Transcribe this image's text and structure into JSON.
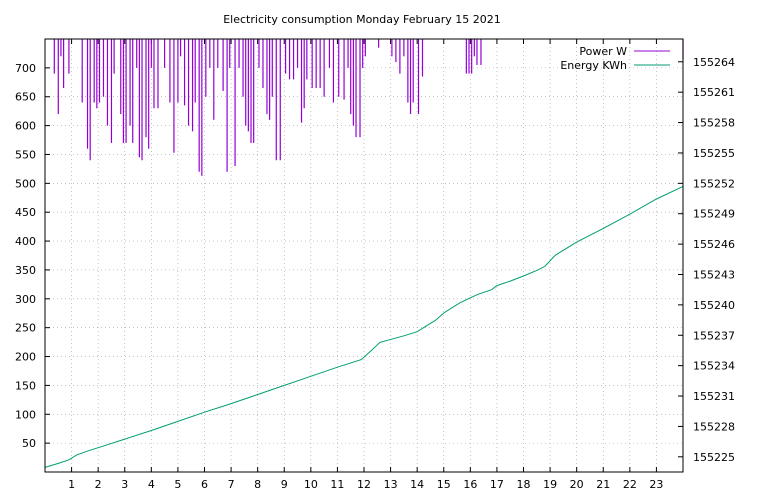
{
  "chart_data": {
    "type": "line",
    "title": "Electricity consumption Monday February 15 2021",
    "xlabel": "",
    "ylabel": "",
    "y2label": "",
    "grid": true,
    "legend_position": "top-right",
    "xlim": [
      0,
      24
    ],
    "ylim": [
      0,
      750
    ],
    "y2lim": [
      155223.5,
      155266.25
    ],
    "x_ticks": [
      1,
      2,
      3,
      4,
      5,
      6,
      7,
      8,
      9,
      10,
      11,
      12,
      13,
      14,
      15,
      16,
      17,
      18,
      19,
      20,
      21,
      22,
      23
    ],
    "y_ticks": [
      50,
      100,
      150,
      200,
      250,
      300,
      350,
      400,
      450,
      500,
      550,
      600,
      650,
      700
    ],
    "y2_ticks": [
      155225,
      155228,
      155231,
      155234,
      155237,
      155240,
      155243,
      155246,
      155249,
      155252,
      155255,
      155258,
      155261,
      155264
    ],
    "series": [
      {
        "name": "Power W",
        "axis": "left",
        "color": "#9400d3",
        "style": "impulses-from-top",
        "x": [
          0.35,
          0.5,
          0.6,
          0.7,
          0.9,
          1.4,
          1.6,
          1.7,
          1.85,
          1.95,
          2.05,
          2.2,
          2.35,
          2.5,
          2.6,
          2.85,
          2.95,
          3.05,
          3.2,
          3.3,
          3.45,
          3.55,
          3.65,
          3.8,
          3.9,
          4.0,
          4.1,
          4.25,
          4.5,
          4.7,
          4.85,
          5.0,
          5.1,
          5.25,
          5.4,
          5.55,
          5.65,
          5.8,
          5.9,
          6.05,
          6.2,
          6.35,
          6.5,
          6.7,
          6.85,
          6.95,
          7.15,
          7.3,
          7.45,
          7.55,
          7.65,
          7.75,
          7.85,
          8.05,
          8.2,
          8.35,
          8.45,
          8.55,
          8.7,
          8.85,
          9.05,
          9.2,
          9.35,
          9.5,
          9.65,
          9.75,
          9.85,
          10.05,
          10.2,
          10.35,
          10.5,
          10.7,
          10.85,
          11.05,
          11.25,
          11.4,
          11.5,
          11.6,
          11.7,
          11.85,
          11.95,
          12.05,
          12.55,
          13.05,
          13.2,
          13.35,
          13.5,
          13.65,
          13.75,
          13.85,
          14.05,
          14.2,
          15.85,
          15.95,
          16.05,
          16.15,
          16.25,
          16.4,
          24.0
        ],
        "values": [
          690,
          620,
          720,
          665,
          690,
          640,
          560,
          540,
          640,
          630,
          640,
          650,
          600,
          570,
          690,
          620,
          570,
          570,
          600,
          570,
          700,
          545,
          540,
          580,
          560,
          700,
          630,
          630,
          700,
          640,
          553,
          640,
          720,
          635,
          600,
          590,
          640,
          520,
          513,
          650,
          700,
          610,
          700,
          660,
          520,
          700,
          530,
          700,
          650,
          600,
          590,
          570,
          570,
          700,
          665,
          620,
          610,
          650,
          540,
          540,
          690,
          680,
          680,
          700,
          605,
          630,
          680,
          665,
          665,
          665,
          650,
          700,
          640,
          650,
          645,
          700,
          620,
          600,
          580,
          580,
          700,
          720,
          735,
          720,
          710,
          690,
          720,
          640,
          620,
          640,
          620,
          685,
          690,
          690,
          690,
          720,
          705,
          705,
          715
        ],
        "note": ""
      },
      {
        "name": "Energy KWh",
        "axis": "right",
        "color": "#009e73",
        "style": "line",
        "x": [
          0.0,
          0.5,
          0.9,
          1.2,
          1.7,
          2.0,
          3.0,
          4.0,
          5.0,
          6.0,
          7.0,
          8.0,
          9.0,
          10.0,
          11.0,
          11.9,
          12.3,
          12.6,
          13.5,
          14.0,
          14.3,
          14.7,
          15.0,
          15.3,
          15.6,
          16.0,
          16.3,
          16.8,
          17.0,
          17.5,
          18.0,
          18.5,
          18.8,
          19.2,
          20.0,
          21.0,
          22.0,
          23.0,
          24.0
        ],
        "values": [
          155223.95,
          155224.35,
          155224.7,
          155225.2,
          155225.65,
          155225.9,
          155226.75,
          155227.6,
          155228.5,
          155229.4,
          155230.25,
          155231.15,
          155232.05,
          155232.95,
          155233.85,
          155234.6,
          155235.55,
          155236.3,
          155236.95,
          155237.35,
          155237.85,
          155238.5,
          155239.2,
          155239.7,
          155240.2,
          155240.7,
          155241.05,
          155241.5,
          155241.9,
          155242.35,
          155242.85,
          155243.4,
          155243.8,
          155244.9,
          155246.2,
          155247.55,
          155248.95,
          155250.45,
          155251.7
        ]
      }
    ]
  }
}
